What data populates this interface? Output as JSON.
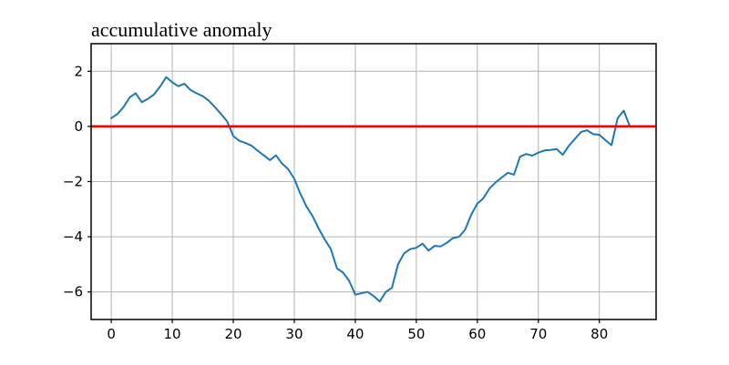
{
  "chart_data": {
    "type": "line",
    "title": "accumulative anomaly",
    "x": [
      0,
      1,
      2,
      3,
      4,
      5,
      6,
      7,
      8,
      9,
      10,
      11,
      12,
      13,
      14,
      15,
      16,
      17,
      18,
      19,
      20,
      21,
      22,
      23,
      24,
      25,
      26,
      27,
      28,
      29,
      30,
      31,
      32,
      33,
      34,
      35,
      36,
      37,
      38,
      39,
      40,
      41,
      42,
      43,
      44,
      45,
      46,
      47,
      48,
      49,
      50,
      51,
      52,
      53,
      54,
      55,
      56,
      57,
      58,
      59,
      60,
      61,
      62,
      63,
      64,
      65,
      66,
      67,
      68,
      69,
      70,
      71,
      72,
      73,
      74,
      75,
      76,
      77,
      78,
      79,
      80,
      81,
      82,
      83,
      84,
      85
    ],
    "y": [
      0.3,
      0.45,
      0.7,
      1.05,
      1.2,
      0.88,
      1.0,
      1.16,
      1.45,
      1.79,
      1.6,
      1.46,
      1.55,
      1.32,
      1.2,
      1.1,
      0.93,
      0.7,
      0.45,
      0.18,
      -0.35,
      -0.52,
      -0.6,
      -0.7,
      -0.88,
      -1.05,
      -1.22,
      -1.05,
      -1.35,
      -1.55,
      -1.9,
      -2.45,
      -2.9,
      -3.25,
      -3.7,
      -4.1,
      -4.45,
      -5.15,
      -5.3,
      -5.6,
      -6.1,
      -6.05,
      -6.0,
      -6.15,
      -6.35,
      -6.0,
      -5.85,
      -5.0,
      -4.6,
      -4.45,
      -4.4,
      -4.25,
      -4.5,
      -4.33,
      -4.35,
      -4.22,
      -4.05,
      -4.0,
      -3.75,
      -3.2,
      -2.8,
      -2.6,
      -2.25,
      -2.03,
      -1.85,
      -1.68,
      -1.75,
      -1.1,
      -1.0,
      -1.06,
      -0.95,
      -0.87,
      -0.85,
      -0.82,
      -1.03,
      -0.7,
      -0.45,
      -0.2,
      -0.14,
      -0.28,
      -0.3,
      -0.5,
      -0.68,
      0.3,
      0.57,
      0.0
    ],
    "xlim": [
      -3.3,
      89.3
    ],
    "ylim": [
      -7,
      3
    ],
    "x_tick_values": [
      0,
      10,
      20,
      30,
      40,
      50,
      60,
      70,
      80
    ],
    "x_tick_labels": [
      "0",
      "10",
      "20",
      "30",
      "40",
      "50",
      "60",
      "70",
      "80"
    ],
    "y_tick_values": [
      2,
      0,
      -2,
      -4,
      -6
    ],
    "y_tick_labels": [
      "2",
      "0",
      "−2",
      "−4",
      "−6"
    ],
    "zero_line_y": 0,
    "grid": true,
    "legend": "none",
    "series_color": "#1f77b4",
    "zero_line_color": "#ff0000",
    "grid_color": "#b4b4b4",
    "axis_color": "#000000",
    "background_color": "#ffffff"
  }
}
